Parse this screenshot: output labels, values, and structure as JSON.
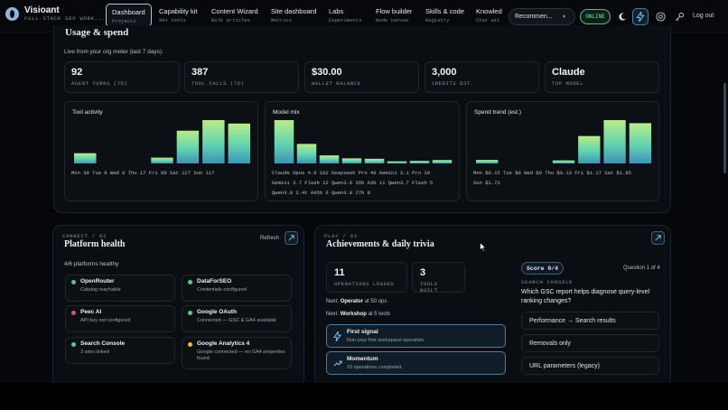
{
  "brand": {
    "name": "Visioant",
    "tagline": "FULL-STACK SEO WORK..."
  },
  "nav": [
    {
      "label": "Dashboard",
      "sub": "Projects",
      "active": true
    },
    {
      "label": "Capability kit",
      "sub": "90+ tools"
    },
    {
      "label": "Content Wizard",
      "sub": "Bulk articles"
    },
    {
      "label": "Site dashboard",
      "sub": "Metrics"
    },
    {
      "label": "Labs",
      "sub": "Experiments"
    },
    {
      "label": "Flow builder",
      "sub": "Node canvas"
    },
    {
      "label": "Skills & code",
      "sub": "Registry"
    },
    {
      "label": "Knowled",
      "sub": "Chat wit"
    }
  ],
  "header": {
    "model_select": "Recommen...",
    "status": "ONLINE",
    "logout": "Log out",
    "icons": [
      "moon-icon",
      "bolt-icon",
      "help-icon",
      "key-icon"
    ]
  },
  "usage": {
    "title": "Usage & spend",
    "subtitle": "Live from your org meter (last 7 days).",
    "stats": [
      {
        "value": "92",
        "label": "AGENT TURNS (7D)"
      },
      {
        "value": "387",
        "label": "TOOL CALLS (7D)"
      },
      {
        "value": "$30.00",
        "label": "WALLET BALANCE"
      },
      {
        "value": "3,000",
        "label": "CREDITS EST."
      },
      {
        "value": "Claude",
        "label": "TOP MODEL"
      }
    ]
  },
  "chart_data": [
    {
      "type": "bar",
      "title": "Tool activity",
      "categories": [
        "Mon",
        "Tue",
        "Wed",
        "Thu",
        "Fri",
        "Sat",
        "Sun"
      ],
      "values": [
        30,
        0,
        0,
        17,
        96,
        127,
        117
      ],
      "caption_lines": [
        "Mon 30  Tue 0  Wed 0  Thu 17  Fri 96  Sat 127  Sun 117"
      ]
    },
    {
      "type": "bar",
      "title": "Model mix",
      "categories": [
        "Claude Opus 4.6",
        "Deepseek Pro",
        "Gemini 3.1 Pro",
        "Gemini 3.7 Flash",
        "Qwen3.6 35b A3b",
        "Qwen3.7 Flash",
        "Qwen3.8 2.4t A95b",
        "Qwen3.8 27b"
      ],
      "values": [
        102,
        46,
        19,
        12,
        11,
        5,
        6,
        8
      ],
      "caption_lines": [
        "Claude Opus 4.6 102  Deepseek Pro 46  Gemini 3.1 Pro 19",
        "Gemini 3.7 Flash 12  Qwen3.6 35b A3b 11  Qwen3.7 Flash 5",
        "Qwen3.8 2.4t A95b 6  Qwen3.8 27b 8"
      ]
    },
    {
      "type": "bar",
      "title": "Spend trend (est.)",
      "categories": [
        "Mon",
        "Tue",
        "Wed",
        "Thu",
        "Fri",
        "Sat",
        "Sun"
      ],
      "values": [
        0.15,
        0,
        0,
        0.13,
        1.17,
        1.85,
        1.72
      ],
      "caption_lines": [
        "Mon $0.15  Tue $0  Wed $0  Thu $0.13  Fri $1.17  Sat $1.85",
        "Sun $1.72"
      ]
    }
  ],
  "health": {
    "eyebrow": "CONNECT / 02",
    "title": "Platform health",
    "refresh": "Refresh",
    "summary": "4/6 platforms healthy",
    "platforms": [
      {
        "name": "OpenRouter",
        "desc": "Catalog reachable",
        "status": "#4fcf7a"
      },
      {
        "name": "DataForSEO",
        "desc": "Credentials configured",
        "status": "#4fcf7a"
      },
      {
        "name": "Peec AI",
        "desc": "API key not configured",
        "status": "#e0565e"
      },
      {
        "name": "Google OAuth",
        "desc": "Connected — GSC & GA4 available",
        "status": "#4fcf7a"
      },
      {
        "name": "Search Console",
        "desc": "3 sites linked",
        "status": "#4fcf7a"
      },
      {
        "name": "Google Analytics 4",
        "desc": "Google connected — no GA4 properties found",
        "status": "#e8b93a"
      }
    ]
  },
  "achieve": {
    "eyebrow": "PLAY / 03",
    "title": "Achievements & daily trivia",
    "stats": [
      {
        "value": "11",
        "label": "OPERATIONS LOGGED"
      },
      {
        "value": "3",
        "label": "TOOLS BUILT"
      }
    ],
    "next1_prefix": "Next:",
    "next1_name": "Operator",
    "next1_rest": "at 50 ops",
    "next2_prefix": "Next:",
    "next2_name": "Workshop",
    "next2_rest": "at 5 tools",
    "badges": [
      {
        "name": "First signal",
        "desc": "Run your first workspace operation.",
        "icon": "bolt-icon"
      },
      {
        "name": "Momentum",
        "desc": "10 operations completed.",
        "icon": "trend-icon"
      }
    ],
    "score": "Score 0/4",
    "question_num": "Question 1 of 4",
    "console_label": "SEARCH CONSOLE",
    "question": "Which GSC report helps diagnose query-level ranking changes?",
    "options": [
      "Performance → Search results",
      "Removals only",
      "URL parameters (legacy)"
    ]
  }
}
